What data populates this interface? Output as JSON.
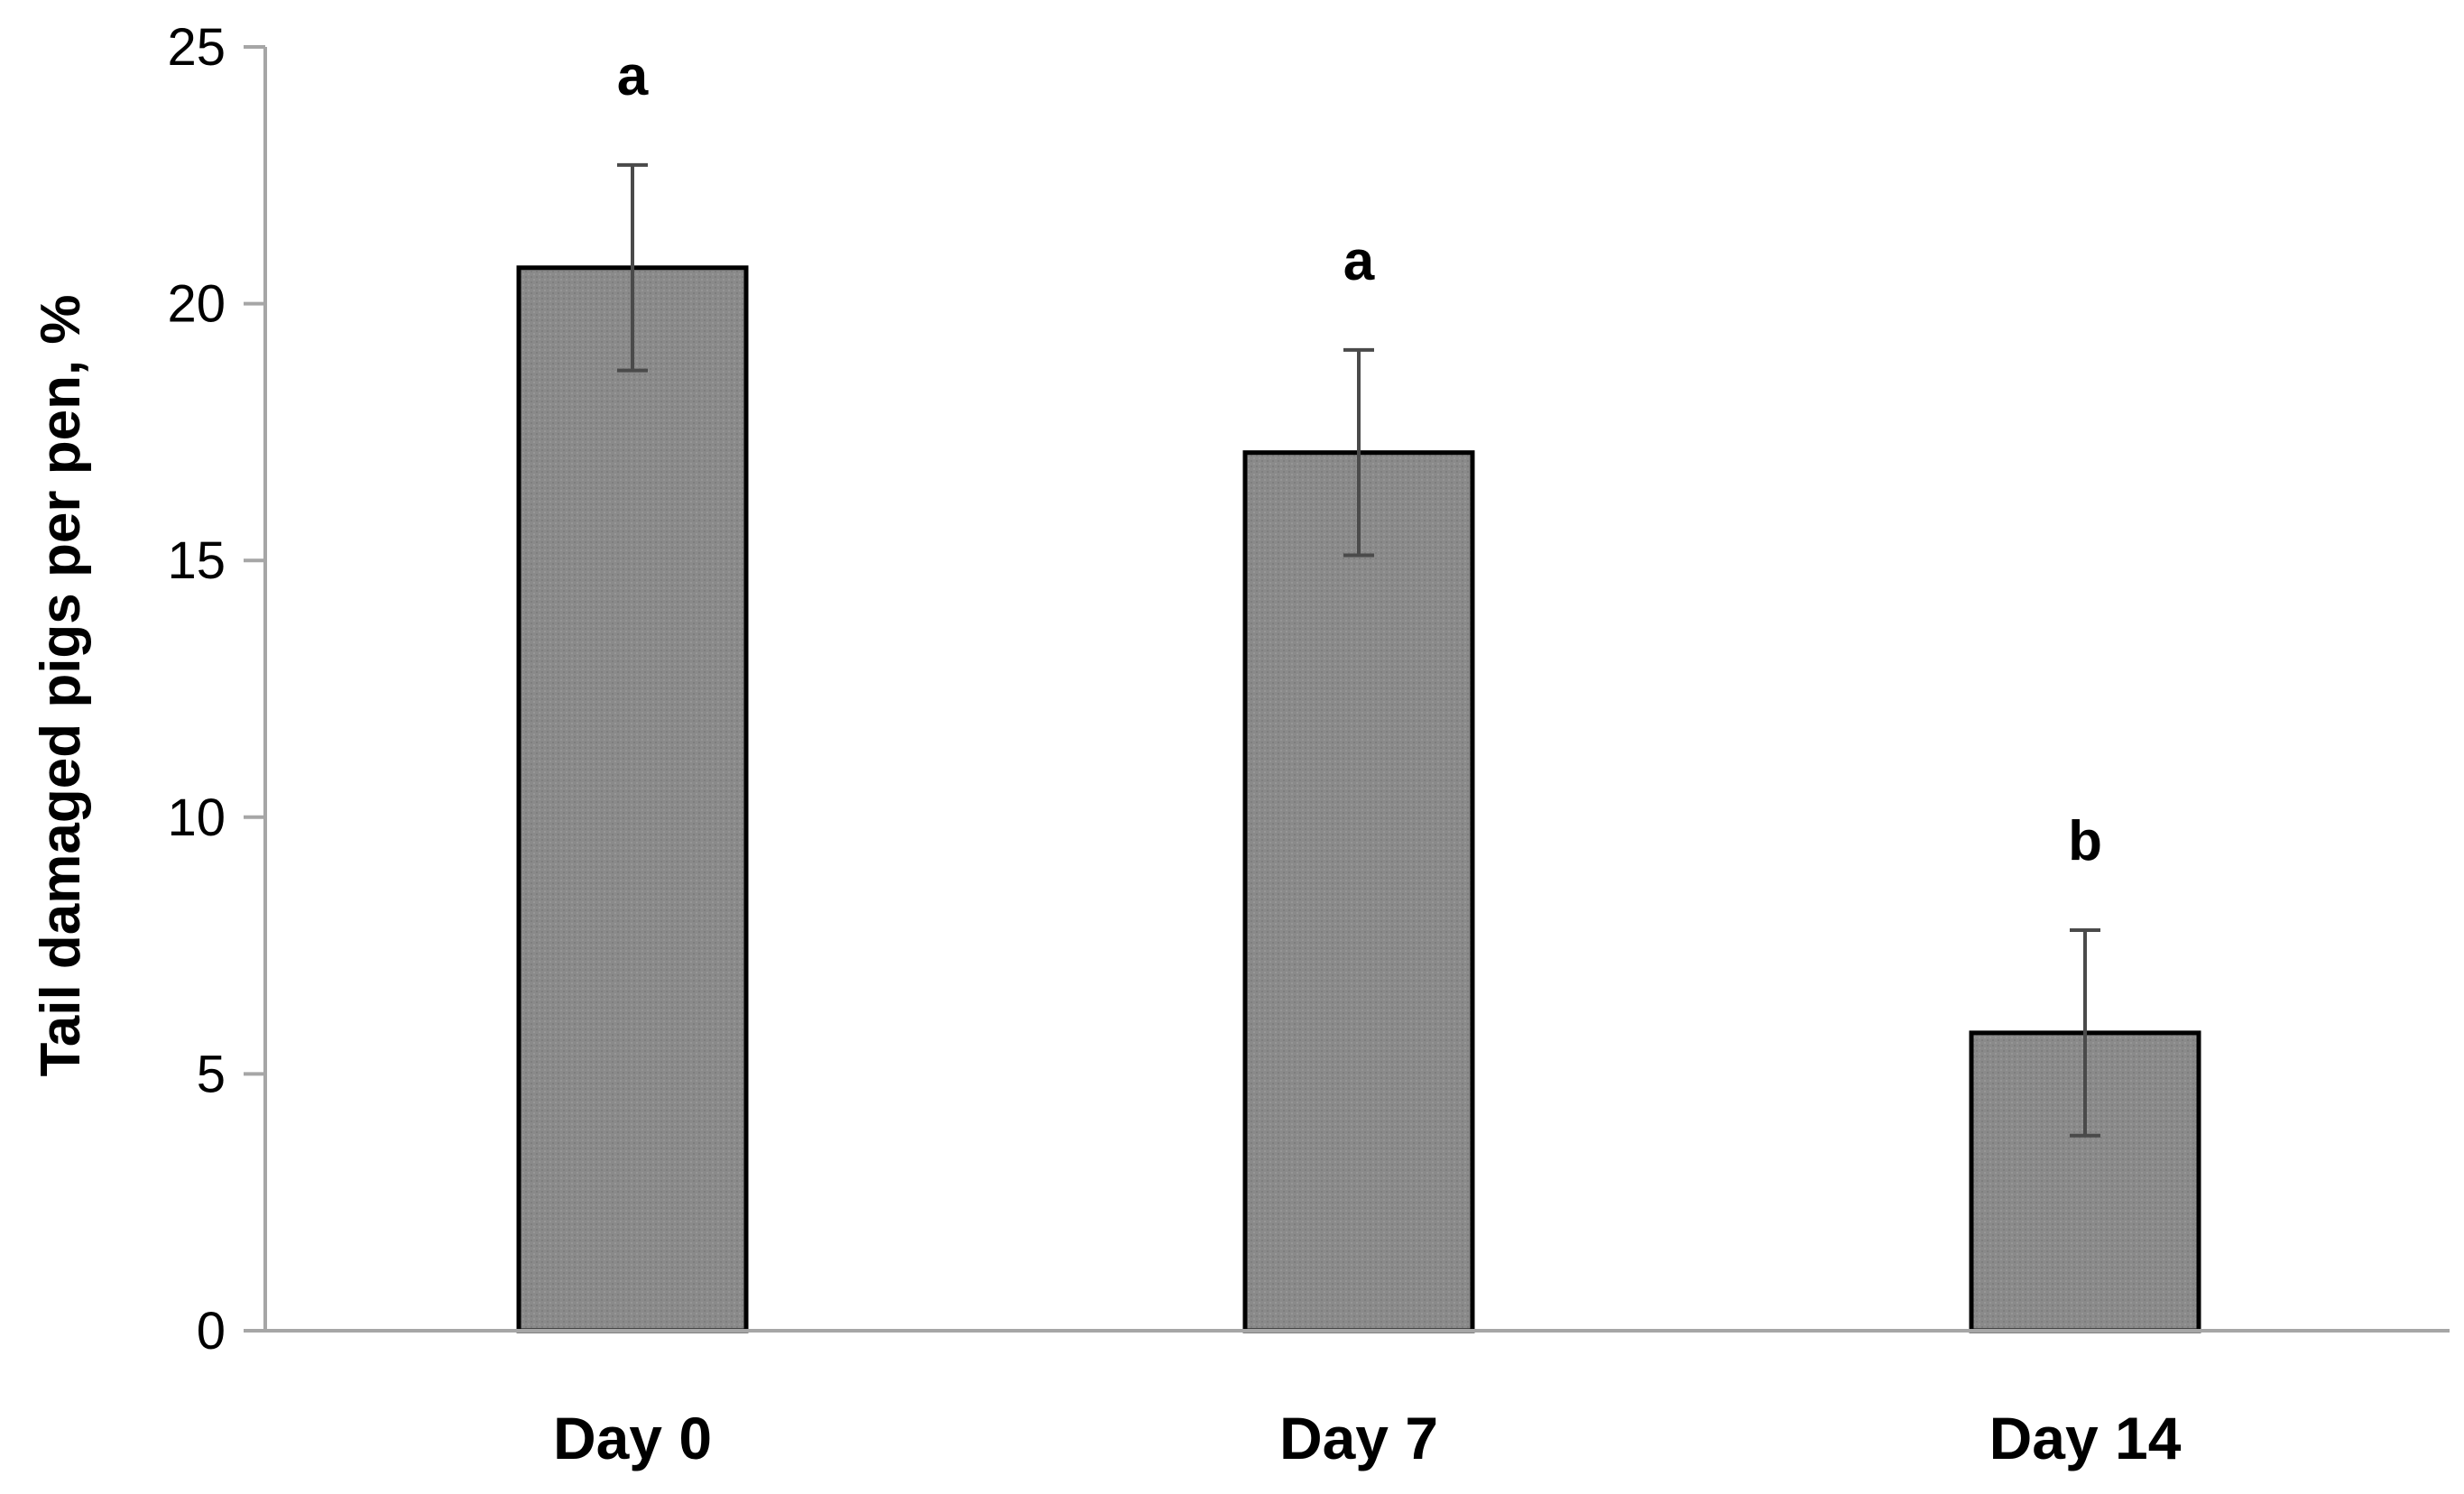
{
  "chart_data": {
    "type": "bar",
    "title": "",
    "xlabel": "",
    "ylabel": "Tail damaged pigs per pen, %",
    "categories": [
      "Day 0",
      "Day 7",
      "Day 14"
    ],
    "values": [
      20.7,
      17.1,
      5.8
    ],
    "error": [
      2.0,
      2.0,
      2.0
    ],
    "significance_letters": [
      "a",
      "a",
      "b"
    ],
    "ylim": [
      0,
      25
    ],
    "yticks": [
      0,
      5,
      10,
      15,
      20,
      25
    ],
    "grid": false,
    "legend": "none",
    "colors": {
      "bar_fill": "#8a8a8a",
      "bar_edge": "#000000",
      "axis": "#a6a6a6",
      "error_bar": "#4a4a4a"
    }
  }
}
